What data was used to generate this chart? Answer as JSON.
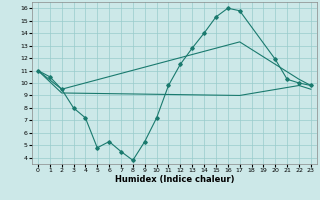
{
  "xlabel": "Humidex (Indice chaleur)",
  "xlim": [
    -0.5,
    23.5
  ],
  "ylim": [
    3.5,
    16.5
  ],
  "xticks": [
    0,
    1,
    2,
    3,
    4,
    5,
    6,
    7,
    8,
    9,
    10,
    11,
    12,
    13,
    14,
    15,
    16,
    17,
    18,
    19,
    20,
    21,
    22,
    23
  ],
  "yticks": [
    4,
    5,
    6,
    7,
    8,
    9,
    10,
    11,
    12,
    13,
    14,
    15,
    16
  ],
  "bg_color": "#cce8e8",
  "grid_color": "#99cccc",
  "line_color": "#1a7a6e",
  "line1_x": [
    0,
    1,
    2,
    3,
    4,
    5,
    6,
    7,
    8,
    9,
    10,
    11,
    12,
    13,
    14,
    15,
    16,
    17,
    20,
    21,
    22,
    23
  ],
  "line1_y": [
    11.0,
    10.5,
    9.5,
    8.0,
    7.2,
    4.8,
    5.3,
    4.5,
    3.8,
    5.3,
    7.2,
    9.8,
    11.5,
    12.8,
    14.0,
    15.3,
    16.0,
    15.8,
    11.9,
    10.3,
    10.0,
    9.8
  ],
  "line2_x": [
    0,
    2,
    17,
    22,
    23
  ],
  "line2_y": [
    11.0,
    9.5,
    13.3,
    10.3,
    9.8
  ],
  "line3_x": [
    0,
    2,
    17,
    22,
    23
  ],
  "line3_y": [
    11.0,
    9.2,
    9.0,
    9.8,
    9.5
  ]
}
